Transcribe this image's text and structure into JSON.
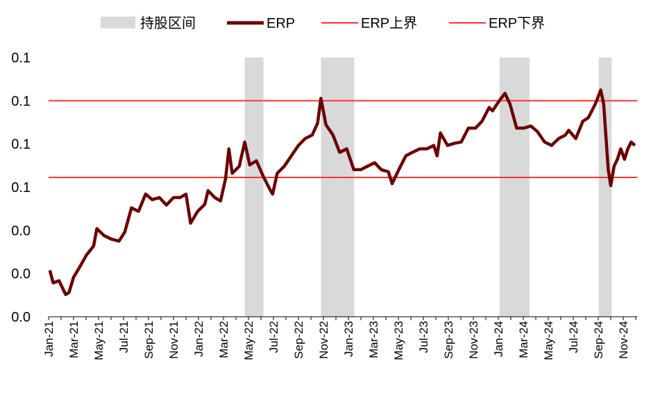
{
  "chart_data": {
    "type": "line",
    "title": "",
    "xlabel": "",
    "ylabel": "",
    "legend_position": "top",
    "grid": false,
    "legend": [
      {
        "name": "持股区间",
        "kind": "band",
        "color": "#d9d9d9"
      },
      {
        "name": "ERP",
        "kind": "line",
        "color": "#6b0000"
      },
      {
        "name": "ERP上界",
        "kind": "line",
        "color": "#ff3333"
      },
      {
        "name": "ERP下界",
        "kind": "line",
        "color": "#ff3333"
      }
    ],
    "ylim": [
      0,
      0.12
    ],
    "y_ticks": [
      0,
      0.02,
      0.04,
      0.06,
      0.08,
      0.1,
      0.12
    ],
    "y_tick_labels": [
      "0.0",
      "0.0",
      "0.0",
      "0.1",
      "0.1",
      "0.1",
      "0.1"
    ],
    "xlim": [
      "2021-01-01",
      "2024-12-05"
    ],
    "x_tick_labels": [
      "Jan-21",
      "Mar-21",
      "May-21",
      "Jul-21",
      "Sep-21",
      "Nov-21",
      "Jan-22",
      "Mar-22",
      "May-22",
      "Jul-22",
      "Sep-22",
      "Nov-22",
      "Jan-23",
      "Mar-23",
      "May-23",
      "Jul-23",
      "Sep-23",
      "Nov-23",
      "Jan-24",
      "Mar-24",
      "May-24",
      "Jul-24",
      "Sep-24",
      "Nov-24"
    ],
    "upper_bound": 0.1,
    "lower_bound": 0.0645,
    "holding_periods": [
      [
        "2022-04-22",
        "2022-06-07"
      ],
      [
        "2022-10-25",
        "2023-01-15"
      ],
      [
        "2024-01-04",
        "2024-03-16"
      ],
      [
        "2024-09-02",
        "2024-10-03"
      ]
    ],
    "series": [
      {
        "name": "ERP",
        "x": [
          "2021-01-04",
          "2021-01-12",
          "2021-01-26",
          "2021-02-12",
          "2021-02-20",
          "2021-03-01",
          "2021-03-16",
          "2021-04-02",
          "2021-04-19",
          "2021-04-27",
          "2021-05-14",
          "2021-06-01",
          "2021-06-20",
          "2021-07-04",
          "2021-07-20",
          "2021-08-07",
          "2021-08-24",
          "2021-09-10",
          "2021-09-27",
          "2021-10-14",
          "2021-11-01",
          "2021-11-17",
          "2021-12-01",
          "2021-12-12",
          "2021-12-29",
          "2022-01-16",
          "2022-01-24",
          "2022-02-10",
          "2022-02-24",
          "2022-03-06",
          "2022-03-14",
          "2022-03-22",
          "2022-04-09",
          "2022-04-22",
          "2022-05-04",
          "2022-05-20",
          "2022-06-07",
          "2022-06-24",
          "2022-06-29",
          "2022-07-10",
          "2022-07-27",
          "2022-08-14",
          "2022-09-01",
          "2022-09-17",
          "2022-10-04",
          "2022-10-17",
          "2022-10-25",
          "2022-11-07",
          "2022-11-24",
          "2022-12-10",
          "2022-12-27",
          "2023-01-14",
          "2023-02-01",
          "2023-02-17",
          "2023-03-04",
          "2023-03-20",
          "2023-04-07",
          "2023-04-16",
          "2023-05-02",
          "2023-05-19",
          "2023-06-05",
          "2023-06-22",
          "2023-07-09",
          "2023-07-26",
          "2023-08-04",
          "2023-08-12",
          "2023-08-29",
          "2023-09-16",
          "2023-10-02",
          "2023-10-19",
          "2023-11-06",
          "2023-11-22",
          "2023-12-09",
          "2023-12-17",
          "2024-01-04",
          "2024-01-17",
          "2024-01-29",
          "2024-02-15",
          "2024-03-02",
          "2024-03-19",
          "2024-04-05",
          "2024-04-22",
          "2024-05-09",
          "2024-05-26",
          "2024-06-12",
          "2024-06-20",
          "2024-07-07",
          "2024-07-24",
          "2024-08-07",
          "2024-08-24",
          "2024-09-07",
          "2024-09-14",
          "2024-09-25",
          "2024-10-01",
          "2024-10-09",
          "2024-10-17",
          "2024-10-25",
          "2024-11-04",
          "2024-11-12",
          "2024-11-20",
          "2024-11-29"
        ],
        "y": [
          0.0215,
          0.0157,
          0.0167,
          0.0103,
          0.0112,
          0.0183,
          0.0231,
          0.0286,
          0.0327,
          0.0408,
          0.0376,
          0.036,
          0.035,
          0.0392,
          0.0504,
          0.0488,
          0.0568,
          0.0542,
          0.0552,
          0.0517,
          0.0552,
          0.0552,
          0.0568,
          0.0433,
          0.0488,
          0.052,
          0.0584,
          0.0552,
          0.0536,
          0.0639,
          0.0777,
          0.0664,
          0.0697,
          0.0809,
          0.0703,
          0.0722,
          0.0648,
          0.0584,
          0.0568,
          0.0664,
          0.0697,
          0.0745,
          0.0793,
          0.0825,
          0.0841,
          0.0896,
          0.1011,
          0.0889,
          0.0841,
          0.0761,
          0.0777,
          0.0681,
          0.0681,
          0.0697,
          0.0713,
          0.0681,
          0.0671,
          0.0616,
          0.0681,
          0.0745,
          0.0761,
          0.0777,
          0.0777,
          0.0793,
          0.0745,
          0.0851,
          0.0793,
          0.0803,
          0.0809,
          0.0873,
          0.0873,
          0.0905,
          0.0969,
          0.0953,
          0.1002,
          0.1034,
          0.0985,
          0.0873,
          0.0873,
          0.0883,
          0.0857,
          0.0809,
          0.0793,
          0.0825,
          0.0841,
          0.0863,
          0.0825,
          0.0905,
          0.0921,
          0.0985,
          0.105,
          0.0985,
          0.0681,
          0.0607,
          0.0697,
          0.0729,
          0.0777,
          0.0729,
          0.0777,
          0.0809,
          0.0793
        ]
      }
    ]
  }
}
